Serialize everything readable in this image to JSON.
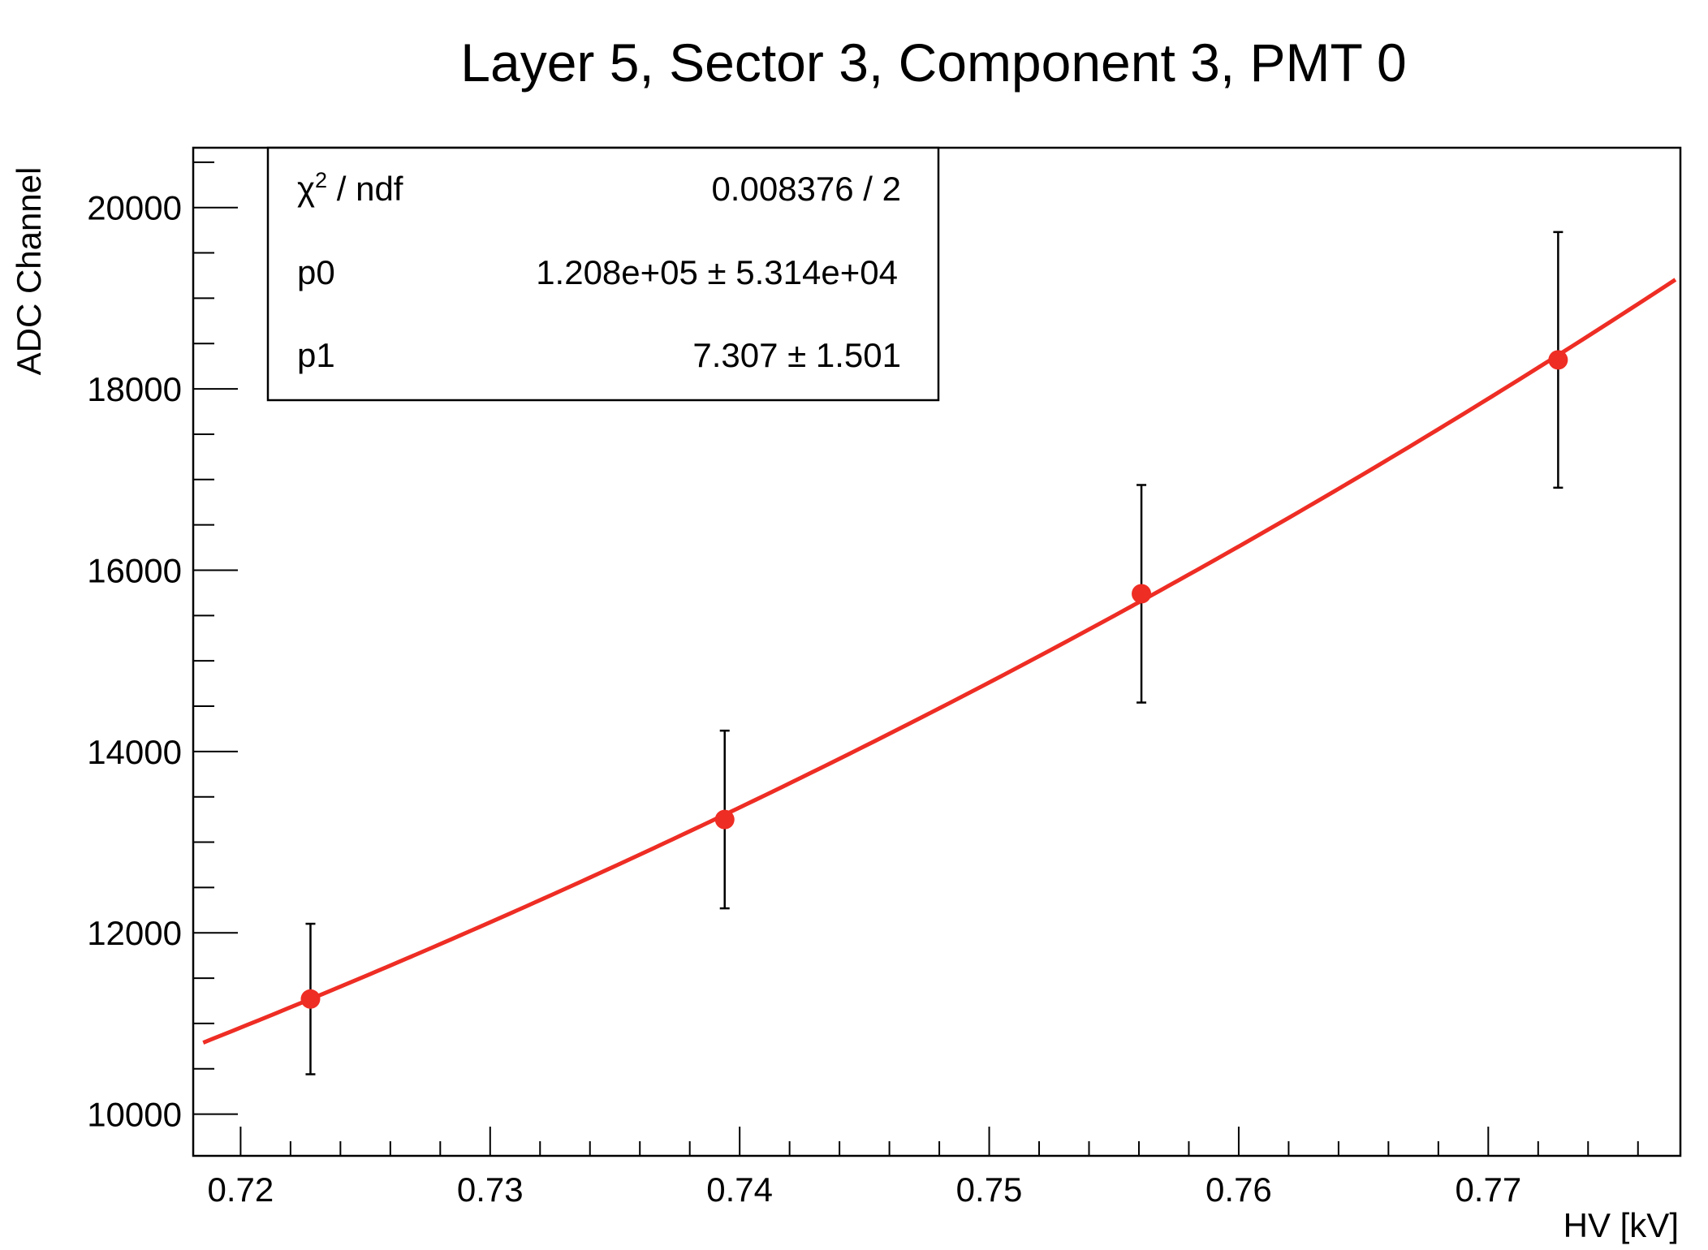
{
  "chart_data": {
    "type": "scatter",
    "title": "Layer 5, Sector 3, Component 3, PMT 0",
    "xlabel": "HV [kV]",
    "ylabel": "ADC Channel",
    "xlim": [
      0.7181,
      0.7777
    ],
    "ylim": [
      9540,
      20660
    ],
    "x_ticks": [
      0.72,
      0.73,
      0.74,
      0.75,
      0.76,
      0.77
    ],
    "x_tick_labels": [
      "0.72",
      "0.73",
      "0.74",
      "0.75",
      "0.76",
      "0.77"
    ],
    "y_ticks": [
      10000,
      12000,
      14000,
      16000,
      18000,
      20000
    ],
    "y_tick_labels": [
      "10000",
      "12000",
      "14000",
      "16000",
      "18000",
      "20000"
    ],
    "grid": false,
    "colors": {
      "points": "#ee2d24",
      "fit": "#ee2d24",
      "error_bars": "#000000",
      "axes": "#000000"
    },
    "series": [
      {
        "points": [
          {
            "x": 0.7228,
            "y": 11270,
            "yerr": 830
          },
          {
            "x": 0.7394,
            "y": 13250,
            "yerr": 980
          },
          {
            "x": 0.7561,
            "y": 15740,
            "yerr": 1200
          },
          {
            "x": 0.7728,
            "y": 18320,
            "yerr": 1410
          }
        ]
      }
    ],
    "fit": {
      "function": "power_law",
      "x_range": [
        0.7185,
        0.7775
      ],
      "params": {
        "p0": 120800,
        "p1": 7.307
      }
    },
    "stats_box": {
      "position": "top-left",
      "rows": [
        {
          "label_main": "χ",
          "label_sup": "2",
          "label_rest": " / ndf",
          "value": "0.008376 / 2"
        },
        {
          "label_main": "p0",
          "label_sup": "",
          "label_rest": "",
          "value": "1.208e+05 ± 5.314e+04"
        },
        {
          "label_main": "p1",
          "label_sup": "",
          "label_rest": "",
          "value": "7.307 ± 1.501"
        }
      ]
    }
  }
}
